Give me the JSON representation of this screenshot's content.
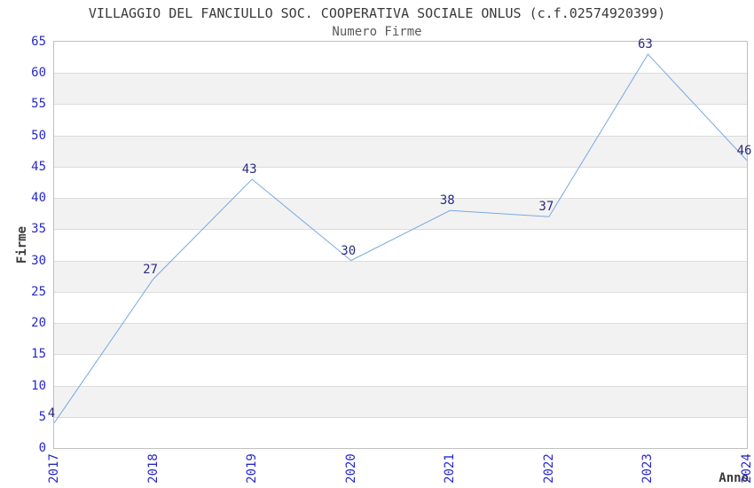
{
  "header": {
    "title": "VILLAGGIO DEL FANCIULLO SOC. COOPERATIVA SOCIALE ONLUS (c.f.02574920399)",
    "subtitle": "Numero Firme"
  },
  "chart_data": {
    "type": "line",
    "title": "VILLAGGIO DEL FANCIULLO SOC. COOPERATIVA SOCIALE ONLUS (c.f.02574920399)",
    "subtitle": "Numero Firme",
    "xlabel": "Anno",
    "ylabel": "Firme",
    "categories": [
      "2017",
      "2018",
      "2019",
      "2020",
      "2021",
      "2022",
      "2023",
      "2024"
    ],
    "values": [
      4,
      27,
      43,
      30,
      38,
      37,
      63,
      46
    ],
    "yticks": [
      0,
      5,
      10,
      15,
      20,
      25,
      30,
      35,
      40,
      45,
      50,
      55,
      60,
      65
    ],
    "ylim": [
      0,
      65
    ],
    "grid": "horizontal",
    "legend": "none",
    "colors": {
      "line": "#78a8e0",
      "tick_labels": "#2828cc",
      "data_labels": "#2b2b80",
      "band": "#f2f2f2",
      "gridline": "#dcdcdc",
      "frame": "#c0c0c0",
      "title": "#3a3a3a",
      "subtitle": "#5a5a5a",
      "axis_label": "#3a3a3a"
    }
  }
}
